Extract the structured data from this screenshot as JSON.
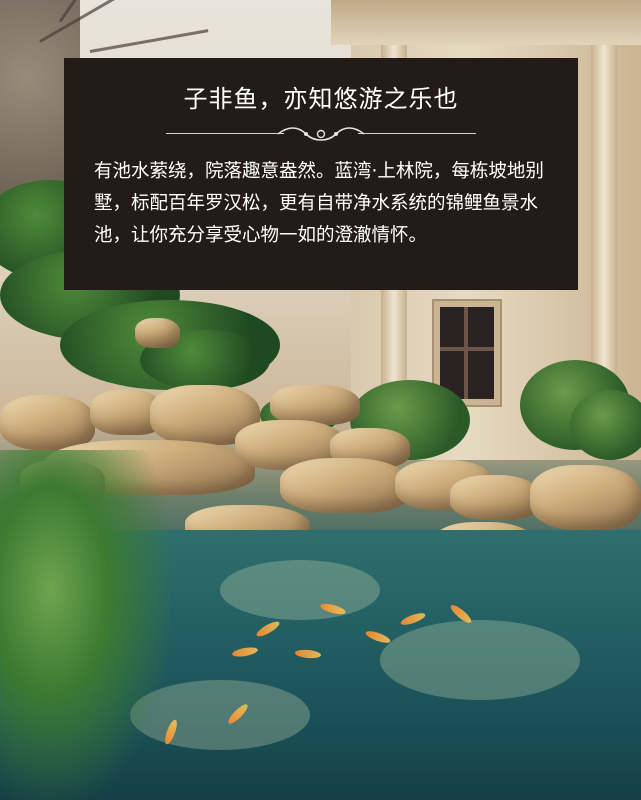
{
  "card": {
    "title": "子非鱼，亦知悠游之乐也",
    "body": "有池水萦绕，院落趣意盎然。蓝湾·上林院，每栋坡地别墅，标配百年罗汉松，更有自带净水系统的锦鲤鱼景水池，让你充分享受心物一如的澄澈情怀。",
    "ornament_icon": "scroll-ornament-icon"
  },
  "scene": {
    "description_icons": [
      "pine-tree-icon",
      "koi-fish-icon",
      "stone-icon",
      "villa-window-icon"
    ]
  },
  "colors": {
    "card_background": "#231b18",
    "card_text": "#ffffff",
    "pond": "#236064"
  }
}
